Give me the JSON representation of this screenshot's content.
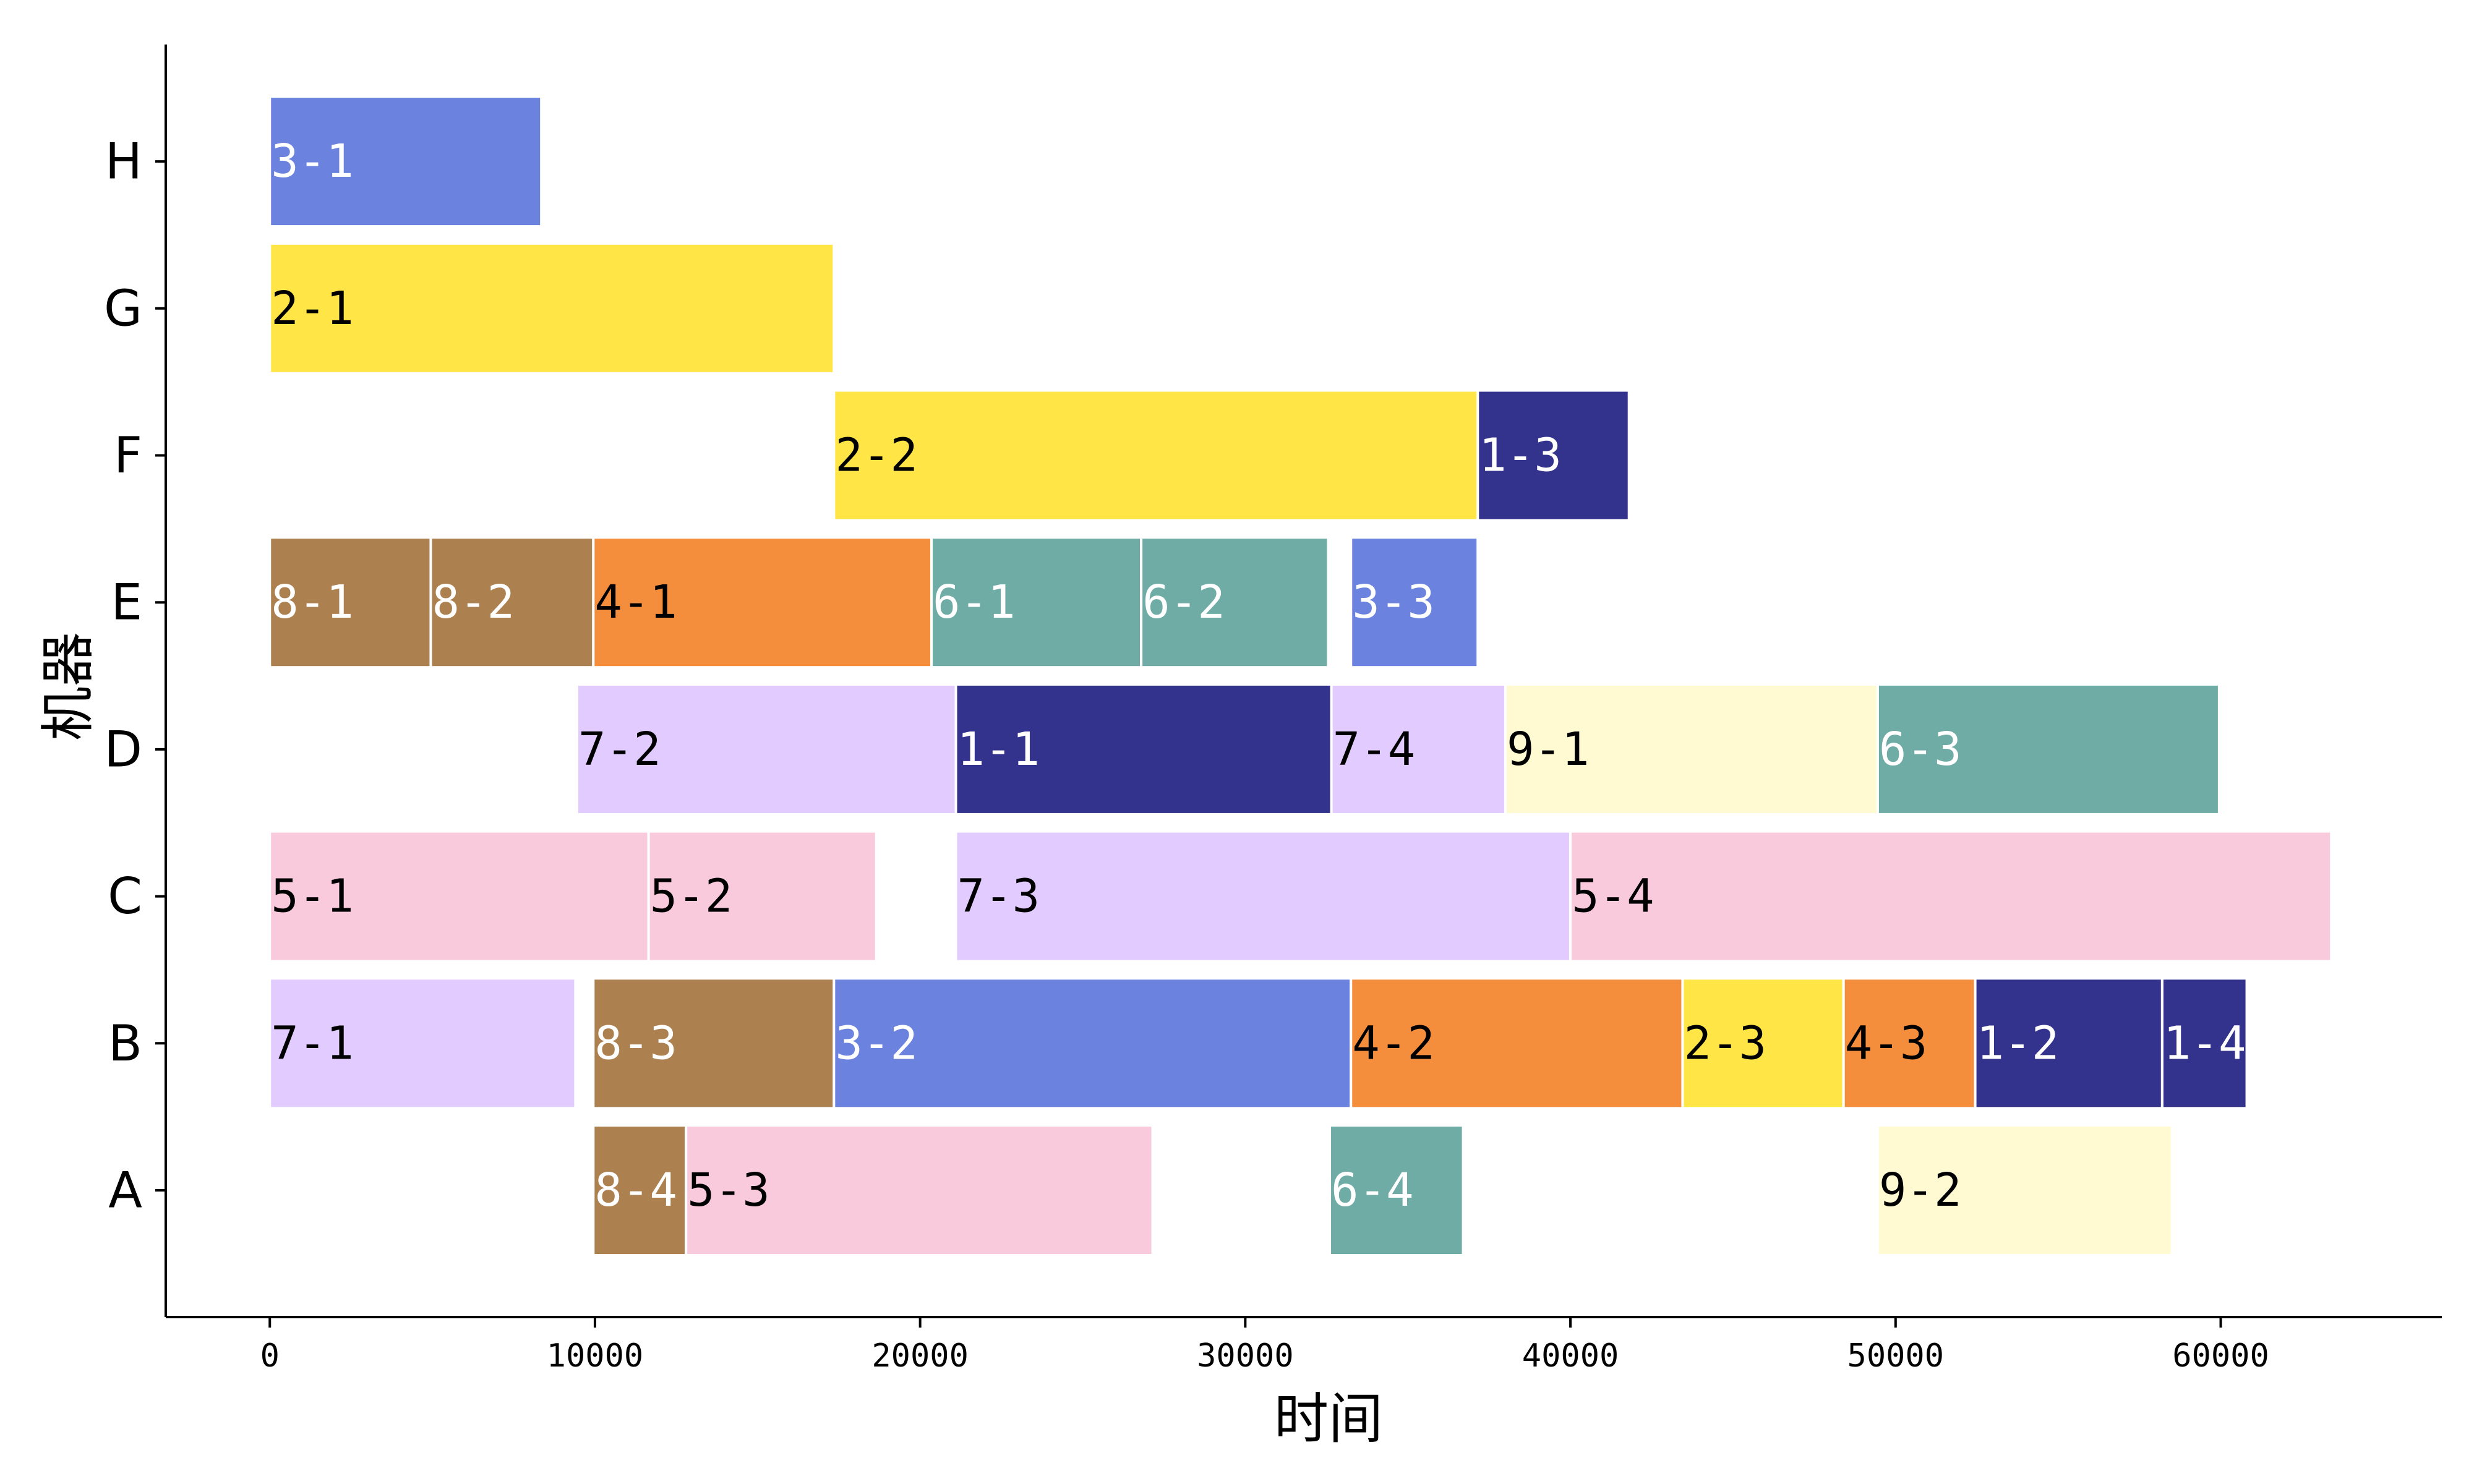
{
  "chart_data": {
    "type": "gantt",
    "title": "",
    "xlabel": "时间",
    "ylabel": "机器",
    "xlim": [
      -3200,
      66800
    ],
    "xticks": [
      0,
      10000,
      20000,
      30000,
      40000,
      50000,
      60000
    ],
    "machines": [
      "A",
      "B",
      "C",
      "D",
      "E",
      "F",
      "G",
      "H"
    ],
    "job_colors": {
      "1": "#33338d",
      "2": "#ffe646",
      "3": "#6b82df",
      "4": "#f48d3c",
      "5": "#f9cadb",
      "6": "#6eaca5",
      "7": "#e1cbff",
      "8": "#ad8050",
      "9": "#fffad2"
    },
    "tasks": [
      {
        "label": "3-1",
        "machine": "H",
        "job": "3",
        "start": 0,
        "end": 8350,
        "text_color": "#ffffff"
      },
      {
        "label": "2-1",
        "machine": "G",
        "job": "2",
        "start": 0,
        "end": 17350,
        "text_color": "#000000"
      },
      {
        "label": "2-2",
        "machine": "F",
        "job": "2",
        "start": 17350,
        "end": 37150,
        "text_color": "#000000"
      },
      {
        "label": "1-3",
        "machine": "F",
        "job": "1",
        "start": 37150,
        "end": 41800,
        "text_color": "#ffffff"
      },
      {
        "label": "8-1",
        "machine": "E",
        "job": "8",
        "start": 0,
        "end": 4950,
        "text_color": "#ffffff"
      },
      {
        "label": "8-2",
        "machine": "E",
        "job": "8",
        "start": 4950,
        "end": 9950,
        "text_color": "#ffffff"
      },
      {
        "label": "4-1",
        "machine": "E",
        "job": "4",
        "start": 9950,
        "end": 20350,
        "text_color": "#000000"
      },
      {
        "label": "6-1",
        "machine": "E",
        "job": "6",
        "start": 20350,
        "end": 26800,
        "text_color": "#ffffff"
      },
      {
        "label": "6-2",
        "machine": "E",
        "job": "6",
        "start": 26800,
        "end": 32550,
        "text_color": "#ffffff"
      },
      {
        "label": "3-3",
        "machine": "E",
        "job": "3",
        "start": 33250,
        "end": 37150,
        "text_color": "#ffffff"
      },
      {
        "label": "7-2",
        "machine": "D",
        "job": "7",
        "start": 9450,
        "end": 21100,
        "text_color": "#000000"
      },
      {
        "label": "1-1",
        "machine": "D",
        "job": "1",
        "start": 21100,
        "end": 32650,
        "text_color": "#ffffff"
      },
      {
        "label": "7-4",
        "machine": "D",
        "job": "7",
        "start": 32650,
        "end": 38000,
        "text_color": "#000000"
      },
      {
        "label": "9-1",
        "machine": "D",
        "job": "9",
        "start": 38000,
        "end": 49450,
        "text_color": "#000000"
      },
      {
        "label": "6-3",
        "machine": "D",
        "job": "6",
        "start": 49450,
        "end": 59950,
        "text_color": "#ffffff"
      },
      {
        "label": "5-1",
        "machine": "C",
        "job": "5",
        "start": 0,
        "end": 11650,
        "text_color": "#000000"
      },
      {
        "label": "5-2",
        "machine": "C",
        "job": "5",
        "start": 11650,
        "end": 18650,
        "text_color": "#000000"
      },
      {
        "label": "7-3",
        "machine": "C",
        "job": "7",
        "start": 21100,
        "end": 40000,
        "text_color": "#000000"
      },
      {
        "label": "5-4",
        "machine": "C",
        "job": "5",
        "start": 40000,
        "end": 63400,
        "text_color": "#000000"
      },
      {
        "label": "7-1",
        "machine": "B",
        "job": "7",
        "start": 0,
        "end": 9400,
        "text_color": "#000000"
      },
      {
        "label": "8-3",
        "machine": "B",
        "job": "8",
        "start": 9950,
        "end": 17350,
        "text_color": "#ffffff"
      },
      {
        "label": "3-2",
        "machine": "B",
        "job": "3",
        "start": 17350,
        "end": 33250,
        "text_color": "#ffffff"
      },
      {
        "label": "4-2",
        "machine": "B",
        "job": "4",
        "start": 33250,
        "end": 43450,
        "text_color": "#000000"
      },
      {
        "label": "2-3",
        "machine": "B",
        "job": "2",
        "start": 43450,
        "end": 48400,
        "text_color": "#000000"
      },
      {
        "label": "4-3",
        "machine": "B",
        "job": "4",
        "start": 48400,
        "end": 52450,
        "text_color": "#000000"
      },
      {
        "label": "1-2",
        "machine": "B",
        "job": "1",
        "start": 52450,
        "end": 58200,
        "text_color": "#ffffff"
      },
      {
        "label": "1-4",
        "machine": "B",
        "job": "1",
        "start": 58200,
        "end": 60800,
        "text_color": "#ffffff"
      },
      {
        "label": "8-4",
        "machine": "A",
        "job": "8",
        "start": 9950,
        "end": 12800,
        "text_color": "#ffffff"
      },
      {
        "label": "5-3",
        "machine": "A",
        "job": "5",
        "start": 12800,
        "end": 27150,
        "text_color": "#000000"
      },
      {
        "label": "6-4",
        "machine": "A",
        "job": "6",
        "start": 32600,
        "end": 36700,
        "text_color": "#ffffff"
      },
      {
        "label": "9-2",
        "machine": "A",
        "job": "9",
        "start": 49450,
        "end": 58500,
        "text_color": "#000000"
      }
    ],
    "grid": false,
    "legend": "none"
  }
}
